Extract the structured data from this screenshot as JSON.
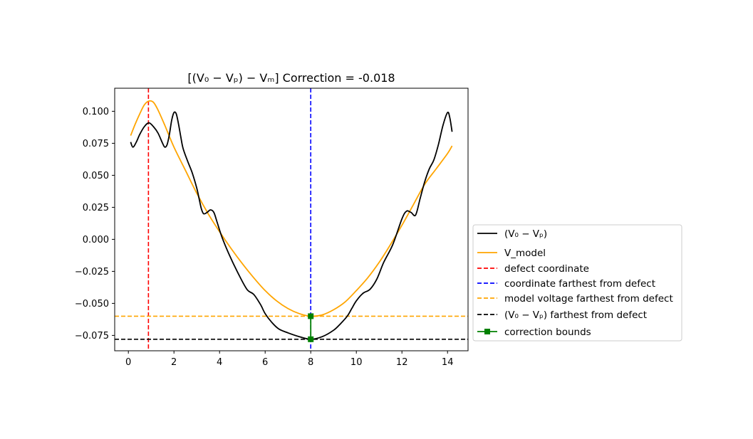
{
  "chart_data": {
    "type": "line",
    "title": "[(V₀ − Vₚ) − Vₘ] Correction = -0.018",
    "xlabel": "",
    "ylabel": "",
    "xlim": [
      -0.6,
      14.9
    ],
    "ylim": [
      -0.087,
      0.118
    ],
    "xticks": [
      0,
      2,
      4,
      6,
      8,
      10,
      12,
      14
    ],
    "xtick_labels": [
      "0",
      "2",
      "4",
      "6",
      "8",
      "10",
      "12",
      "14"
    ],
    "yticks": [
      0.1,
      0.075,
      0.05,
      0.025,
      0.0,
      -0.025,
      -0.05,
      -0.075
    ],
    "ytick_labels": [
      "0.100",
      "0.075",
      "0.050",
      "0.025",
      "0.000",
      "−0.025",
      "−0.050",
      "−0.075"
    ],
    "grid": false,
    "legend_position": "center-right outside",
    "series": [
      {
        "name": "(V₀ − Vₚ)",
        "color": "#000000",
        "style": "solid",
        "x": [
          0.1,
          0.2,
          0.35,
          0.5,
          0.7,
          0.9,
          1.1,
          1.3,
          1.5,
          1.6,
          1.7,
          1.8,
          1.9,
          2.0,
          2.1,
          2.2,
          2.3,
          2.4,
          2.6,
          2.8,
          3.0,
          3.1,
          3.2,
          3.3,
          3.45,
          3.6,
          3.75,
          3.9,
          4.1,
          4.4,
          4.8,
          5.2,
          5.5,
          5.8,
          6.0,
          6.3,
          6.6,
          7.0,
          7.5,
          8.0,
          8.5,
          9.0,
          9.3,
          9.6,
          9.8,
          10.0,
          10.3,
          10.6,
          10.9,
          11.2,
          11.6,
          12.0,
          12.2,
          12.4,
          12.6,
          12.8,
          13.0,
          13.2,
          13.4,
          13.6,
          13.8,
          14.0,
          14.1,
          14.2
        ],
        "values": [
          0.076,
          0.072,
          0.076,
          0.082,
          0.088,
          0.091,
          0.088,
          0.083,
          0.075,
          0.072,
          0.074,
          0.082,
          0.093,
          0.099,
          0.098,
          0.09,
          0.08,
          0.071,
          0.061,
          0.052,
          0.04,
          0.032,
          0.024,
          0.02,
          0.021,
          0.023,
          0.021,
          0.013,
          0.002,
          -0.011,
          -0.026,
          -0.039,
          -0.043,
          -0.051,
          -0.058,
          -0.065,
          -0.07,
          -0.073,
          -0.076,
          -0.078,
          -0.076,
          -0.071,
          -0.066,
          -0.06,
          -0.054,
          -0.048,
          -0.042,
          -0.039,
          -0.031,
          -0.018,
          -0.004,
          0.016,
          0.022,
          0.021,
          0.019,
          0.032,
          0.045,
          0.055,
          0.062,
          0.074,
          0.089,
          0.099,
          0.095,
          0.084
        ]
      },
      {
        "name": "V_model",
        "color": "#ffa500",
        "style": "solid",
        "x": [
          0.1,
          0.3,
          0.5,
          0.7,
          0.9,
          1.1,
          1.3,
          1.6,
          2.0,
          2.5,
          3.0,
          3.5,
          4.0,
          4.5,
          5.0,
          5.5,
          6.0,
          6.5,
          7.0,
          7.5,
          8.0,
          8.5,
          9.0,
          9.5,
          10.0,
          10.5,
          11.0,
          11.5,
          12.0,
          12.5,
          13.0,
          13.5,
          14.0,
          14.2
        ],
        "values": [
          0.081,
          0.09,
          0.098,
          0.105,
          0.108,
          0.107,
          0.101,
          0.089,
          0.072,
          0.054,
          0.036,
          0.02,
          0.006,
          -0.007,
          -0.019,
          -0.03,
          -0.04,
          -0.048,
          -0.054,
          -0.058,
          -0.06,
          -0.059,
          -0.055,
          -0.049,
          -0.04,
          -0.03,
          -0.018,
          -0.004,
          0.011,
          0.027,
          0.043,
          0.055,
          0.067,
          0.073
        ]
      }
    ],
    "reference_lines": [
      {
        "name": "defect coordinate",
        "orientation": "vertical",
        "value": 0.88,
        "color": "#ff0000",
        "style": "dashed"
      },
      {
        "name": "coordinate farthest from defect",
        "orientation": "vertical",
        "value": 8.0,
        "color": "#0000ff",
        "style": "dashed"
      },
      {
        "name": "model voltage farthest from defect",
        "orientation": "horizontal",
        "value": -0.06,
        "color": "#ffa500",
        "style": "dashed"
      },
      {
        "name": "(V₀ − Vₚ) farthest from defect",
        "orientation": "horizontal",
        "value": -0.078,
        "color": "#000000",
        "style": "dashed"
      }
    ],
    "correction_bounds": {
      "name": "correction bounds",
      "color": "#008000",
      "x": [
        8.0,
        8.0
      ],
      "values": [
        -0.06,
        -0.078
      ]
    },
    "correction_value": -0.018
  },
  "legend": {
    "items": [
      {
        "label": "(V₀ − Vₚ)"
      },
      {
        "label": "V_model"
      },
      {
        "label": "defect coordinate"
      },
      {
        "label": "coordinate farthest from defect"
      },
      {
        "label": "model voltage farthest from defect"
      },
      {
        "label": "(V₀ − Vₚ) farthest from defect"
      },
      {
        "label": "correction bounds"
      }
    ]
  }
}
